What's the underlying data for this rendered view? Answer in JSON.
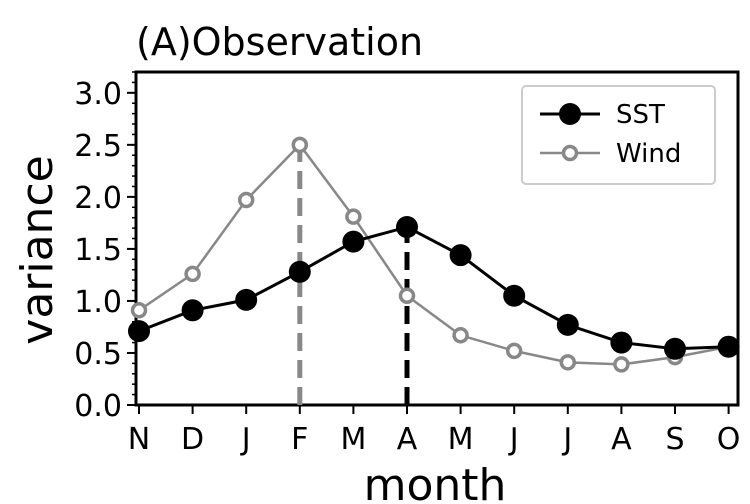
{
  "chart_data": {
    "type": "line",
    "title": "(A)Observation",
    "xlabel": "month",
    "ylabel": "variance",
    "categories": [
      "N",
      "D",
      "J",
      "F",
      "M",
      "A",
      "M",
      "J",
      "J",
      "A",
      "S",
      "O"
    ],
    "ylim": [
      0,
      3.2
    ],
    "yticks": [
      "0.0",
      "0.5",
      "1.0",
      "1.5",
      "2.0",
      "2.5",
      "3.0"
    ],
    "grid": false,
    "legend_position": "top-right",
    "series": [
      {
        "name": "SST",
        "color": "#000000",
        "marker": "filled-circle",
        "values": [
          0.71,
          0.91,
          1.01,
          1.28,
          1.57,
          1.71,
          1.44,
          1.05,
          0.77,
          0.6,
          0.54,
          0.56
        ]
      },
      {
        "name": "Wind",
        "color": "#888888",
        "marker": "open-circle",
        "values": [
          0.91,
          1.26,
          1.97,
          2.5,
          1.81,
          1.05,
          0.67,
          0.52,
          0.41,
          0.39,
          0.46,
          0.56
        ]
      }
    ],
    "peak_markers": [
      {
        "series": "Wind",
        "category_index": 3,
        "color": "#888888",
        "style": "dashed"
      },
      {
        "series": "SST",
        "category_index": 5,
        "color": "#000000",
        "style": "dashed"
      }
    ]
  }
}
